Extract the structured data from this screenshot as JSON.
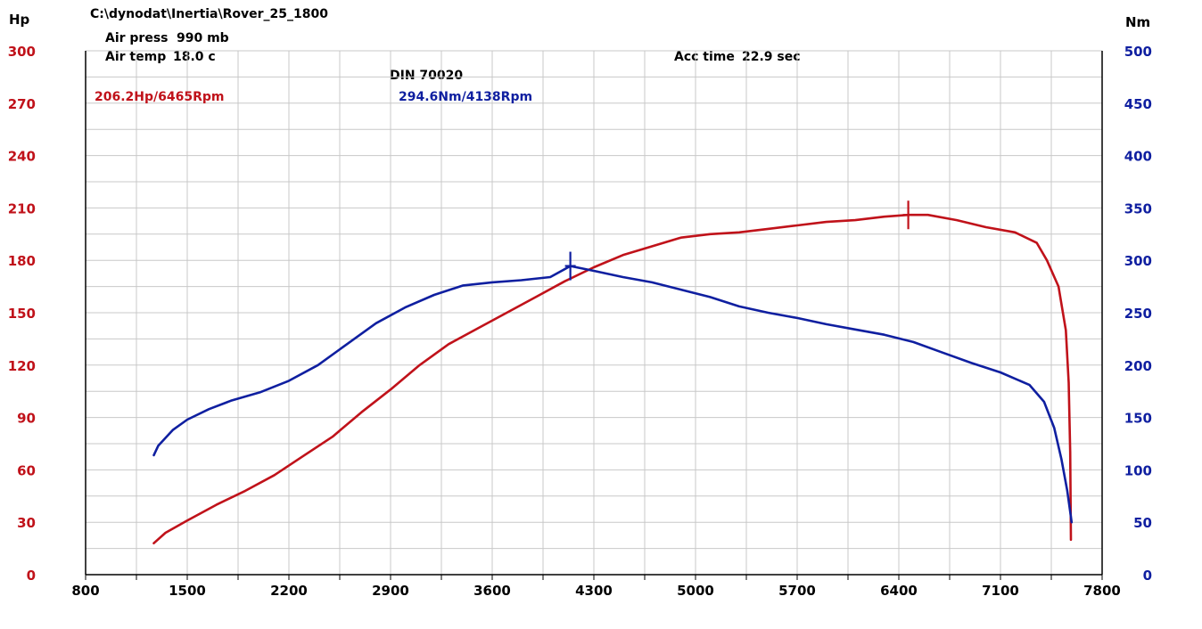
{
  "header": {
    "file_path": "C:\\dynodat\\Inertia\\Rover_25_1800",
    "air_press_label": "Air press",
    "air_press_value": "990 mb",
    "air_temp_label": "Air temp",
    "air_temp_value": "18.0 c",
    "acc_time_label": "Acc time",
    "acc_time_value": "22.9 sec",
    "standard": "DIN 70020"
  },
  "peaks": {
    "power_label": "206.2Hp/6465Rpm",
    "torque_label": "294.6Nm/4138Rpm"
  },
  "colors": {
    "power": "#c0121a",
    "torque": "#0f1fa0",
    "grid": "#c8c8c8",
    "axis": "#000000"
  },
  "chart_data": {
    "type": "line",
    "x_axis": {
      "min": 800,
      "max": 7800,
      "ticks": [
        800,
        1500,
        2200,
        2900,
        3600,
        4300,
        5000,
        5700,
        6400,
        7100,
        7800
      ]
    },
    "y_left": {
      "label": "Hp",
      "min": 0,
      "max": 300,
      "ticks": [
        0,
        30,
        60,
        90,
        120,
        150,
        180,
        210,
        240,
        270,
        300
      ]
    },
    "y_right": {
      "label": "Nm",
      "min": 0,
      "max": 500,
      "ticks": [
        0,
        50,
        100,
        150,
        200,
        250,
        300,
        350,
        400,
        450,
        500
      ]
    },
    "grid": true,
    "series": [
      {
        "axis": "left",
        "color": "#c0121a",
        "x": [
          1270,
          1350,
          1500,
          1700,
          1900,
          2100,
          2300,
          2500,
          2700,
          2900,
          3100,
          3300,
          3500,
          3700,
          3900,
          4100,
          4300,
          4500,
          4700,
          4900,
          5100,
          5300,
          5500,
          5700,
          5900,
          6100,
          6300,
          6465,
          6600,
          6800,
          7000,
          7200,
          7350,
          7420,
          7500,
          7550,
          7570,
          7580,
          7585
        ],
        "y": [
          18,
          24,
          31,
          40,
          48,
          57,
          68,
          79,
          93,
          106,
          120,
          132,
          141,
          150,
          159,
          168,
          176,
          183,
          188,
          193,
          195,
          196,
          198,
          200,
          202,
          203,
          205,
          206,
          206,
          203,
          199,
          196,
          190,
          180,
          165,
          140,
          110,
          70,
          20
        ]
      },
      {
        "axis": "right",
        "color": "#0f1fa0",
        "x": [
          1270,
          1300,
          1400,
          1500,
          1650,
          1800,
          2000,
          2200,
          2400,
          2600,
          2800,
          3000,
          3200,
          3400,
          3600,
          3800,
          4000,
          4138,
          4300,
          4500,
          4700,
          4900,
          5100,
          5300,
          5500,
          5700,
          5900,
          6100,
          6300,
          6500,
          6700,
          6900,
          7100,
          7300,
          7400,
          7470,
          7520,
          7560,
          7580,
          7590
        ],
        "y": [
          114,
          123,
          138,
          148,
          158,
          166,
          174,
          185,
          200,
          220,
          240,
          255,
          267,
          276,
          279,
          281,
          284,
          294.6,
          290,
          284,
          279,
          272,
          265,
          256,
          250,
          245,
          239,
          234,
          229,
          222,
          212,
          202,
          193,
          181,
          165,
          140,
          110,
          80,
          60,
          50
        ]
      }
    ]
  }
}
